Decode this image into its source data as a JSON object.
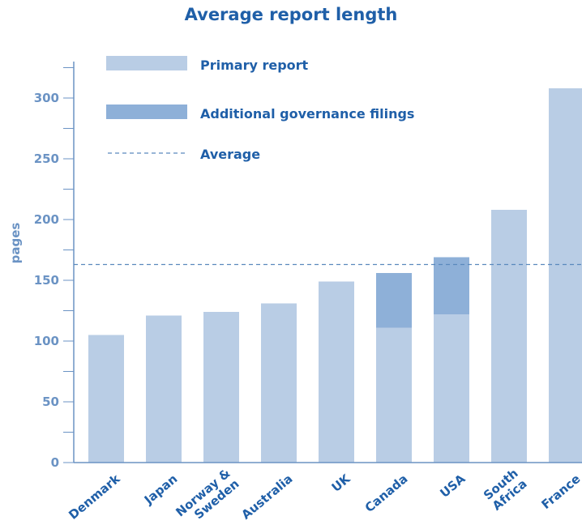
{
  "chart_data": {
    "type": "bar",
    "title": "Average report length",
    "ylabel": "pages",
    "xlabel": "",
    "ylim": [
      0,
      330
    ],
    "yticks": [
      0,
      50,
      100,
      150,
      200,
      250,
      300
    ],
    "categories": [
      "Denmark",
      "Japan",
      "Norway &\nSweden",
      "Australia",
      "UK",
      "Canada",
      "USA",
      "South\nAfrica",
      "France"
    ],
    "stacked": true,
    "series": [
      {
        "name": "Primary report",
        "color": "#b9cde5",
        "values": [
          105,
          121,
          124,
          131,
          149,
          111,
          122,
          208,
          308
        ]
      },
      {
        "name": "Additional governance filings",
        "color": "#8eb0d8",
        "values": [
          0,
          0,
          0,
          0,
          0,
          45,
          47,
          0,
          0
        ]
      }
    ],
    "average": {
      "name": "Average",
      "value": 163,
      "color": "#5a89bd",
      "style": "dashed"
    },
    "legend_position": "top-left",
    "grid": false
  }
}
